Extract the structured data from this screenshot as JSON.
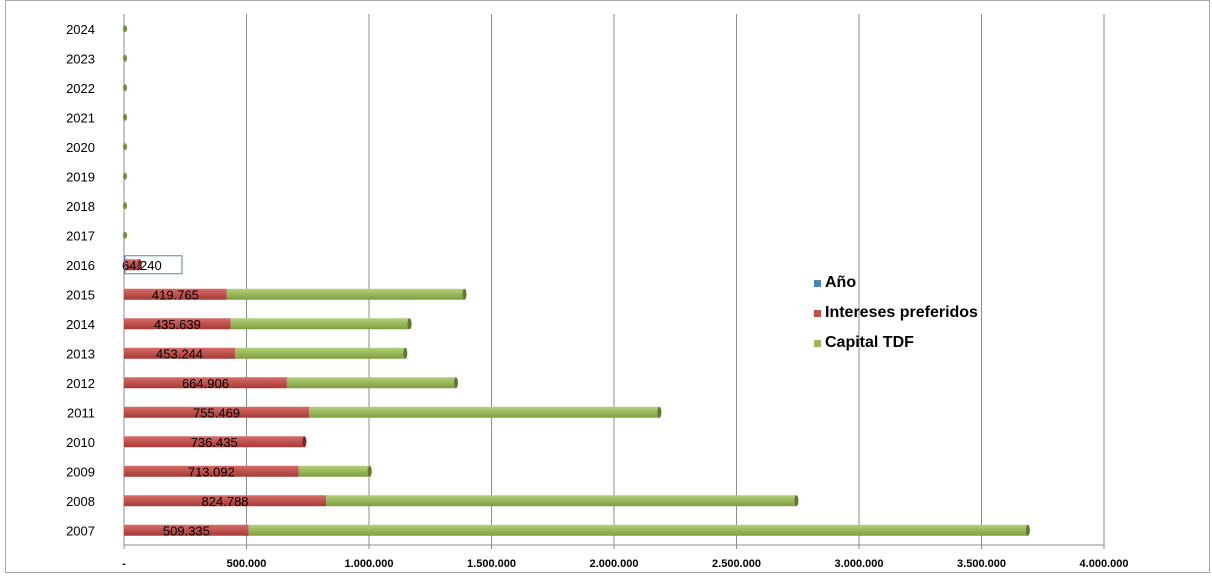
{
  "chart_data": {
    "type": "bar",
    "orientation": "horizontal",
    "stacked": true,
    "categories": [
      "2007",
      "2008",
      "2009",
      "2010",
      "2011",
      "2012",
      "2013",
      "2014",
      "2015",
      "2016",
      "2017",
      "2018",
      "2019",
      "2020",
      "2021",
      "2022",
      "2023",
      "2024"
    ],
    "series": [
      {
        "name": "Año",
        "color": "#4f81bd",
        "values": [
          0,
          0,
          0,
          0,
          0,
          0,
          0,
          0,
          0,
          0,
          0,
          0,
          0,
          0,
          0,
          0,
          0,
          0
        ]
      },
      {
        "name": "Intereses preferidos",
        "color": "#c0504d",
        "values": [
          509335,
          824788,
          713092,
          736435,
          755469,
          664906,
          453244,
          435639,
          419765,
          64240,
          0,
          0,
          0,
          0,
          0,
          0,
          0,
          0
        ]
      },
      {
        "name": "Capital TDF",
        "color": "#9bbb59",
        "values": [
          3180000,
          1920000,
          290000,
          0,
          1430000,
          690000,
          695000,
          730000,
          970000,
          0,
          0,
          0,
          0,
          0,
          0,
          0,
          0,
          0
        ]
      }
    ],
    "data_labels": [
      "509.335",
      "824.788",
      "713.092",
      "736.435",
      "755.469",
      "664.906",
      "453.244",
      "435.639",
      "419.765",
      "64.240",
      "",
      "",
      "",
      "",
      "",
      "",
      "",
      ""
    ],
    "x_ticks": [
      "-",
      "500.000",
      "1.000.000",
      "1.500.000",
      "2.000.000",
      "2.500.000",
      "3.000.000",
      "3.500.000",
      "4.000.000"
    ],
    "xlim": [
      0,
      4000000
    ],
    "grid": "vertical",
    "legend_position": "right",
    "title": "",
    "xlabel": "",
    "ylabel": ""
  }
}
